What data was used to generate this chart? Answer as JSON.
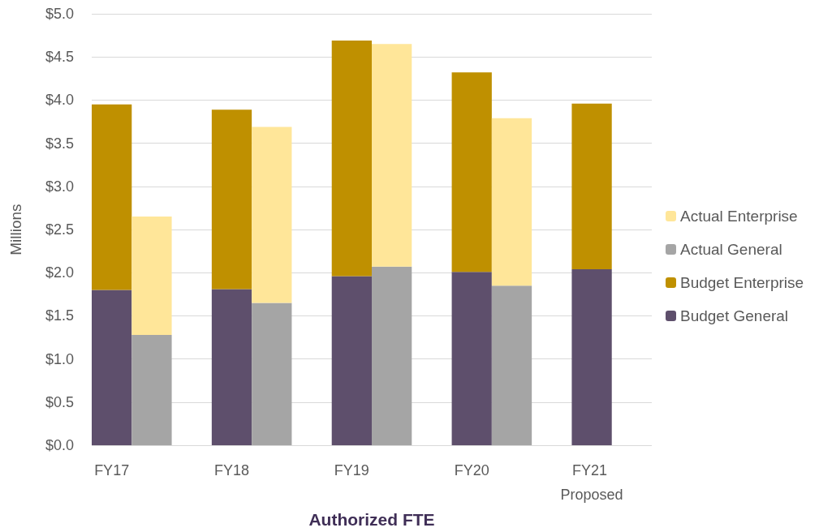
{
  "chart_data": {
    "type": "bar",
    "stacked": true,
    "xlabel": "Authorized FTE",
    "ylabel": "Millions",
    "categories": [
      "FY17",
      null,
      null,
      "FY18",
      null,
      null,
      "FY19",
      null,
      null,
      "FY20",
      null,
      null,
      "FY21 Proposed",
      null
    ],
    "series": [
      {
        "name": "Budget General",
        "color": "#5e4f6c",
        "values": [
          1.8,
          null,
          null,
          1.81,
          null,
          null,
          1.96,
          null,
          null,
          2.01,
          null,
          null,
          2.04,
          null
        ]
      },
      {
        "name": "Budget Enterprise",
        "color": "#bf9000",
        "values": [
          2.15,
          null,
          null,
          2.08,
          null,
          null,
          2.73,
          null,
          null,
          2.31,
          null,
          null,
          1.92,
          null
        ]
      },
      {
        "name": "Actual General",
        "color": "#a5a5a5",
        "values": [
          null,
          1.28,
          null,
          null,
          1.65,
          null,
          null,
          2.07,
          null,
          null,
          1.85,
          null,
          null,
          null
        ]
      },
      {
        "name": "Actual Enterprise",
        "color": "#ffe699",
        "values": [
          null,
          1.37,
          null,
          null,
          2.04,
          null,
          null,
          2.58,
          null,
          null,
          1.94,
          null,
          null,
          null
        ]
      }
    ],
    "ylim": [
      0,
      5
    ],
    "yticks": [
      {
        "value": 0,
        "label": "$0.0"
      },
      {
        "value": 0.5,
        "label": "$0.5"
      },
      {
        "value": 1,
        "label": "$1.0"
      },
      {
        "value": 1.5,
        "label": "$1.5"
      },
      {
        "value": 2,
        "label": "$2.0"
      },
      {
        "value": 2.5,
        "label": "$2.5"
      },
      {
        "value": 3,
        "label": "$3.0"
      },
      {
        "value": 3.5,
        "label": "$3.5"
      },
      {
        "value": 4,
        "label": "$4.0"
      },
      {
        "value": 4.5,
        "label": "$4.5"
      },
      {
        "value": 5,
        "label": "$5.0"
      }
    ],
    "grid": "y",
    "legend": "right"
  }
}
